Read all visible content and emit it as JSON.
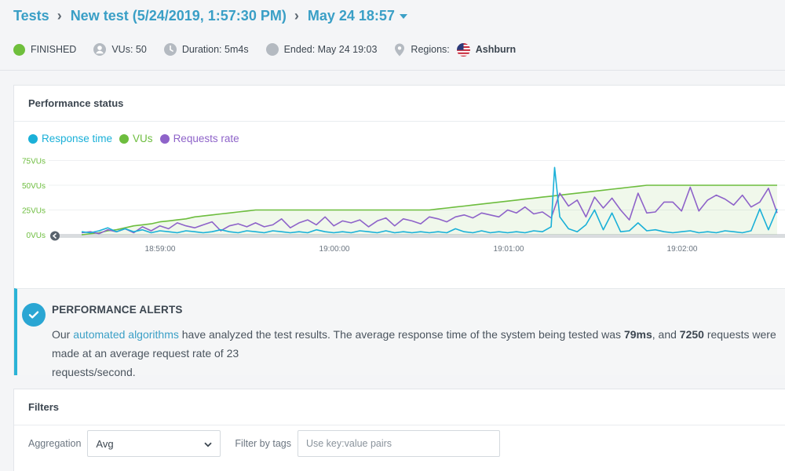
{
  "breadcrumb": {
    "tests": "Tests",
    "test_name": "New test (5/24/2019, 1:57:30 PM)",
    "run": "May 24 18:57"
  },
  "meta": {
    "status": "FINISHED",
    "vus": "VUs: 50",
    "duration": "Duration: 5m4s",
    "ended": "Ended: May 24 19:03",
    "regions_label": "Regions:",
    "region": "Ashburn"
  },
  "performance": {
    "title": "Performance status",
    "legend": [
      "Response time",
      "VUs",
      "Requests rate"
    ]
  },
  "alert": {
    "title": "PERFORMANCE ALERTS",
    "text_1": "Our ",
    "link": "automated algorithms",
    "text_2": " have analyzed the test results. The average response time of the system being tested was ",
    "avg": "79ms",
    "text_3": ", and ",
    "requests": "7250",
    "text_4": " requests were made at an average request rate of 23",
    "text_5": "requests/second."
  },
  "filters": {
    "title": "Filters",
    "aggregation_label": "Aggregation",
    "aggregation_value": "Avg",
    "tags_label": "Filter by tags",
    "tags_placeholder": "Use key:value pairs"
  },
  "colors": {
    "accent": "#3a9fc6",
    "finished": "#6fbf3c",
    "response_time": "#1ab0d8",
    "vus": "#6dbd3e",
    "requests_rate": "#8e63c9"
  },
  "chart_data": {
    "type": "line",
    "y_ticks": [
      "75VUs",
      "50VUs",
      "25VUs",
      "0VUs"
    ],
    "ylim": [
      0,
      75
    ],
    "x_ticks": [
      "18:59:00",
      "19:00:00",
      "19:01:00",
      "19:02:00"
    ],
    "series": [
      {
        "name": "VUs",
        "points": [
          [
            0,
            0
          ],
          [
            0.1,
            2
          ],
          [
            0.15,
            4
          ],
          [
            0.2,
            5
          ],
          [
            0.25,
            7
          ],
          [
            0.3,
            9
          ],
          [
            0.35,
            10
          ],
          [
            0.4,
            11
          ],
          [
            0.45,
            13
          ],
          [
            0.5,
            14
          ],
          [
            0.55,
            15
          ],
          [
            0.6,
            16
          ],
          [
            0.65,
            18
          ],
          [
            0.7,
            19
          ],
          [
            0.75,
            20
          ],
          [
            0.8,
            21
          ],
          [
            0.85,
            22
          ],
          [
            0.9,
            23
          ],
          [
            0.95,
            24
          ],
          [
            1,
            25
          ],
          [
            1.3,
            25
          ],
          [
            1.6,
            25
          ],
          [
            1.9,
            25
          ],
          [
            2,
            25
          ],
          [
            2.05,
            26
          ],
          [
            2.1,
            27
          ],
          [
            2.15,
            28
          ],
          [
            2.2,
            29
          ],
          [
            2.25,
            30
          ],
          [
            2.3,
            31
          ],
          [
            2.35,
            32
          ],
          [
            2.4,
            33
          ],
          [
            2.45,
            34
          ],
          [
            2.5,
            35
          ],
          [
            2.55,
            36
          ],
          [
            2.6,
            37
          ],
          [
            2.65,
            38
          ],
          [
            2.7,
            39
          ],
          [
            2.75,
            40
          ],
          [
            2.8,
            41
          ],
          [
            2.85,
            42
          ],
          [
            2.9,
            43
          ],
          [
            2.95,
            44
          ],
          [
            3,
            45
          ],
          [
            3.05,
            46
          ],
          [
            3.1,
            47
          ],
          [
            3.15,
            48
          ],
          [
            3.2,
            49
          ],
          [
            3.25,
            50
          ],
          [
            3.5,
            50
          ],
          [
            4,
            50
          ]
        ]
      },
      {
        "name": "Requests rate",
        "points": [
          [
            0,
            2
          ],
          [
            0.05,
            3
          ],
          [
            0.1,
            1
          ],
          [
            0.15,
            5
          ],
          [
            0.2,
            3
          ],
          [
            0.25,
            6
          ],
          [
            0.3,
            2
          ],
          [
            0.35,
            8
          ],
          [
            0.4,
            4
          ],
          [
            0.45,
            9
          ],
          [
            0.5,
            6
          ],
          [
            0.55,
            12
          ],
          [
            0.6,
            9
          ],
          [
            0.65,
            7
          ],
          [
            0.7,
            10
          ],
          [
            0.75,
            13
          ],
          [
            0.8,
            4
          ],
          [
            0.85,
            9
          ],
          [
            0.9,
            11
          ],
          [
            0.95,
            8
          ],
          [
            1,
            12
          ],
          [
            1.05,
            8
          ],
          [
            1.1,
            10
          ],
          [
            1.15,
            16
          ],
          [
            1.2,
            7
          ],
          [
            1.25,
            12
          ],
          [
            1.3,
            15
          ],
          [
            1.35,
            10
          ],
          [
            1.4,
            18
          ],
          [
            1.45,
            9
          ],
          [
            1.5,
            14
          ],
          [
            1.55,
            12
          ],
          [
            1.6,
            15
          ],
          [
            1.65,
            8
          ],
          [
            1.7,
            14
          ],
          [
            1.75,
            17
          ],
          [
            1.8,
            9
          ],
          [
            1.85,
            16
          ],
          [
            1.9,
            14
          ],
          [
            1.95,
            11
          ],
          [
            2,
            18
          ],
          [
            2.05,
            16
          ],
          [
            2.1,
            13
          ],
          [
            2.15,
            18
          ],
          [
            2.2,
            20
          ],
          [
            2.25,
            17
          ],
          [
            2.3,
            22
          ],
          [
            2.35,
            20
          ],
          [
            2.4,
            18
          ],
          [
            2.45,
            25
          ],
          [
            2.5,
            22
          ],
          [
            2.55,
            28
          ],
          [
            2.6,
            21
          ],
          [
            2.65,
            23
          ],
          [
            2.7,
            17
          ],
          [
            2.75,
            42
          ],
          [
            2.8,
            29
          ],
          [
            2.85,
            35
          ],
          [
            2.9,
            18
          ],
          [
            2.95,
            38
          ],
          [
            3,
            27
          ],
          [
            3.05,
            37
          ],
          [
            3.1,
            25
          ],
          [
            3.15,
            15
          ],
          [
            3.2,
            42
          ],
          [
            3.25,
            22
          ],
          [
            3.3,
            23
          ],
          [
            3.35,
            33
          ],
          [
            3.4,
            33
          ],
          [
            3.45,
            24
          ],
          [
            3.5,
            48
          ],
          [
            3.55,
            24
          ],
          [
            3.6,
            35
          ],
          [
            3.65,
            40
          ],
          [
            3.7,
            36
          ],
          [
            3.75,
            30
          ],
          [
            3.8,
            40
          ],
          [
            3.85,
            28
          ],
          [
            3.9,
            33
          ],
          [
            3.95,
            47
          ],
          [
            4,
            22
          ]
        ]
      },
      {
        "name": "Response time",
        "points": [
          [
            0,
            3
          ],
          [
            0.05,
            2
          ],
          [
            0.1,
            4
          ],
          [
            0.15,
            7
          ],
          [
            0.2,
            3
          ],
          [
            0.25,
            6
          ],
          [
            0.3,
            3
          ],
          [
            0.35,
            5
          ],
          [
            0.4,
            2
          ],
          [
            0.45,
            4
          ],
          [
            0.5,
            3
          ],
          [
            0.55,
            2
          ],
          [
            0.6,
            4
          ],
          [
            0.65,
            3
          ],
          [
            0.7,
            2
          ],
          [
            0.75,
            3
          ],
          [
            0.8,
            5
          ],
          [
            0.85,
            3
          ],
          [
            0.9,
            2
          ],
          [
            0.95,
            4
          ],
          [
            1,
            3
          ],
          [
            1.05,
            2
          ],
          [
            1.1,
            4
          ],
          [
            1.15,
            3
          ],
          [
            1.2,
            2
          ],
          [
            1.25,
            3
          ],
          [
            1.3,
            2
          ],
          [
            1.35,
            5
          ],
          [
            1.4,
            3
          ],
          [
            1.45,
            2
          ],
          [
            1.5,
            3
          ],
          [
            1.55,
            2
          ],
          [
            1.6,
            4
          ],
          [
            1.65,
            3
          ],
          [
            1.7,
            2
          ],
          [
            1.75,
            4
          ],
          [
            1.8,
            2
          ],
          [
            1.85,
            3
          ],
          [
            1.9,
            2
          ],
          [
            1.95,
            3
          ],
          [
            2,
            2
          ],
          [
            2.05,
            3
          ],
          [
            2.1,
            2
          ],
          [
            2.15,
            6
          ],
          [
            2.2,
            3
          ],
          [
            2.25,
            2
          ],
          [
            2.3,
            4
          ],
          [
            2.35,
            2
          ],
          [
            2.4,
            3
          ],
          [
            2.45,
            2
          ],
          [
            2.5,
            3
          ],
          [
            2.55,
            2
          ],
          [
            2.6,
            4
          ],
          [
            2.65,
            3
          ],
          [
            2.7,
            8
          ],
          [
            2.72,
            68
          ],
          [
            2.75,
            18
          ],
          [
            2.8,
            6
          ],
          [
            2.85,
            3
          ],
          [
            2.9,
            10
          ],
          [
            2.95,
            25
          ],
          [
            3,
            5
          ],
          [
            3.05,
            22
          ],
          [
            3.1,
            3
          ],
          [
            3.15,
            4
          ],
          [
            3.2,
            12
          ],
          [
            3.25,
            4
          ],
          [
            3.3,
            5
          ],
          [
            3.35,
            3
          ],
          [
            3.4,
            2
          ],
          [
            3.45,
            3
          ],
          [
            3.5,
            4
          ],
          [
            3.55,
            2
          ],
          [
            3.6,
            3
          ],
          [
            3.65,
            2
          ],
          [
            3.7,
            4
          ],
          [
            3.75,
            3
          ],
          [
            3.8,
            2
          ],
          [
            3.85,
            4
          ],
          [
            3.9,
            26
          ],
          [
            3.95,
            5
          ],
          [
            4,
            26
          ]
        ]
      }
    ]
  }
}
